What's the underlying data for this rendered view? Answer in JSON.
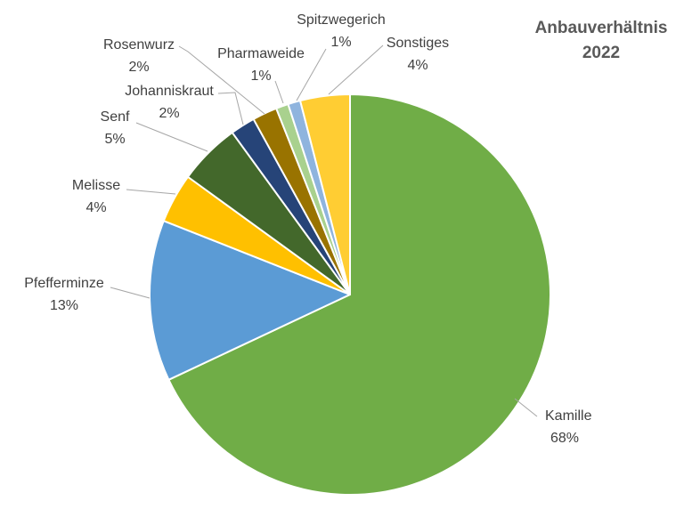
{
  "chart_data": {
    "type": "pie",
    "title_lines": [
      "Anbauverhältnis",
      "2022"
    ],
    "start_angle_deg": 0,
    "direction": "clockwise",
    "slices": [
      {
        "label": "Kamille",
        "value_label": "68%",
        "value": 68,
        "color": "#70AD47"
      },
      {
        "label": "Pfefferminze",
        "value_label": "13%",
        "value": 13,
        "color": "#5B9BD5"
      },
      {
        "label": "Melisse",
        "value_label": "4%",
        "value": 4,
        "color": "#FFC000"
      },
      {
        "label": "Senf",
        "value_label": "5%",
        "value": 5,
        "color": "#43682B"
      },
      {
        "label": "Johanniskraut",
        "value_label": "2%",
        "value": 2,
        "color": "#264478"
      },
      {
        "label": "Rosenwurz",
        "value_label": "2%",
        "value": 2,
        "color": "#997300"
      },
      {
        "label": "Pharmaweide",
        "value_label": "1%",
        "value": 1,
        "color": "#A9D18E"
      },
      {
        "label": "Spitzwegerich",
        "value_label": "1%",
        "value": 1,
        "color": "#8FB4DE"
      },
      {
        "label": "Sonstiges",
        "value_label": "4%",
        "value": 4,
        "color": "#FFCD33"
      }
    ]
  }
}
